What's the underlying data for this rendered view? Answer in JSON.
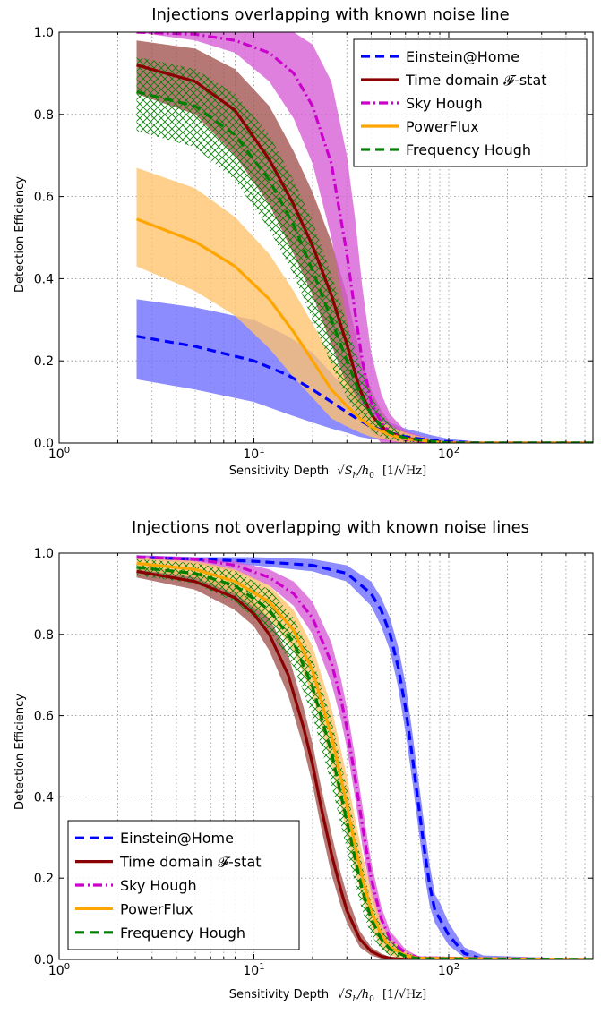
{
  "figure": {
    "background": "#ffffff"
  },
  "chart_data": [
    {
      "type": "line",
      "title": "Injections overlapping with known noise line",
      "xlabel_prefix": "Sensitivity Depth",
      "xlabel_units": "[1/√Hz]",
      "xlabel_math_S": "√S",
      "xlabel_math_S_sub": "h",
      "xlabel_math_h": "/h",
      "xlabel_math_h_sub": "0",
      "ylabel": "Detection Efficiency",
      "xscale": "log",
      "xlim": [
        1,
        550
      ],
      "ylim": [
        0,
        1
      ],
      "x_ticks": [
        {
          "base": "10",
          "exp": "0"
        },
        {
          "base": "10",
          "exp": "1"
        },
        {
          "base": "10",
          "exp": "2"
        }
      ],
      "y_ticks": [
        "0.0",
        "0.2",
        "0.4",
        "0.6",
        "0.8",
        "1.0"
      ],
      "grid": true,
      "legend_position": "top-right",
      "series": [
        {
          "name": "Einstein@Home",
          "color": "#0000ff",
          "style": "dashed",
          "x": [
            2.5,
            5,
            10,
            15,
            20,
            25,
            30,
            35,
            40,
            50,
            60,
            80,
            100,
            150,
            550
          ],
          "y": [
            0.26,
            0.235,
            0.2,
            0.165,
            0.13,
            0.1,
            0.075,
            0.055,
            0.04,
            0.025,
            0.015,
            0.007,
            0.003,
            0.0,
            0.0
          ],
          "lower": [
            0.155,
            0.13,
            0.1,
            0.07,
            0.05,
            0.035,
            0.025,
            0.015,
            0.01,
            0.005,
            0.0,
            0.0,
            0.0,
            0.0,
            0.0
          ],
          "upper": [
            0.35,
            0.33,
            0.3,
            0.26,
            0.22,
            0.17,
            0.13,
            0.1,
            0.075,
            0.05,
            0.035,
            0.02,
            0.01,
            0.002,
            0.0
          ]
        },
        {
          "name": "Time domain 𝓕-stat",
          "color": "#8b0000",
          "style": "solid",
          "x": [
            2.5,
            5,
            8,
            12,
            16,
            20,
            25,
            30,
            35,
            40,
            45,
            50,
            60,
            80,
            100,
            550
          ],
          "y": [
            0.92,
            0.88,
            0.81,
            0.69,
            0.58,
            0.48,
            0.36,
            0.24,
            0.13,
            0.07,
            0.04,
            0.025,
            0.012,
            0.004,
            0.0,
            0.0
          ],
          "lower": [
            0.85,
            0.8,
            0.7,
            0.58,
            0.46,
            0.36,
            0.24,
            0.14,
            0.07,
            0.035,
            0.02,
            0.01,
            0.004,
            0.0,
            0.0,
            0.0
          ],
          "upper": [
            0.98,
            0.96,
            0.91,
            0.82,
            0.71,
            0.61,
            0.49,
            0.36,
            0.22,
            0.13,
            0.08,
            0.05,
            0.025,
            0.01,
            0.0,
            0.0
          ]
        },
        {
          "name": "Sky Hough",
          "color": "#cc00cc",
          "style": "dashdot",
          "x": [
            2.5,
            5,
            8,
            12,
            16,
            20,
            25,
            30,
            33,
            36,
            40,
            45,
            50,
            60,
            80,
            100,
            550
          ],
          "y": [
            1.0,
            0.995,
            0.98,
            0.95,
            0.9,
            0.82,
            0.68,
            0.46,
            0.32,
            0.2,
            0.1,
            0.05,
            0.025,
            0.008,
            0.002,
            0.0,
            0.0
          ],
          "lower": [
            1.0,
            0.98,
            0.95,
            0.88,
            0.79,
            0.68,
            0.5,
            0.3,
            0.18,
            0.09,
            0.03,
            0.0,
            0.0,
            0.0,
            0.0,
            0.0,
            0.0
          ],
          "upper": [
            1.0,
            1.0,
            1.0,
            1.0,
            1.0,
            0.97,
            0.88,
            0.7,
            0.55,
            0.38,
            0.22,
            0.12,
            0.07,
            0.03,
            0.01,
            0.0,
            0.0
          ]
        },
        {
          "name": "PowerFlux",
          "color": "#ffa500",
          "style": "solid",
          "x": [
            2.5,
            5,
            8,
            12,
            16,
            20,
            25,
            30,
            35,
            40,
            50,
            60,
            80,
            100,
            550
          ],
          "y": [
            0.545,
            0.49,
            0.43,
            0.35,
            0.27,
            0.2,
            0.13,
            0.09,
            0.06,
            0.04,
            0.02,
            0.01,
            0.004,
            0.0,
            0.0
          ],
          "lower": [
            0.43,
            0.37,
            0.31,
            0.23,
            0.16,
            0.11,
            0.06,
            0.04,
            0.025,
            0.015,
            0.006,
            0.0,
            0.0,
            0.0,
            0.0
          ],
          "upper": [
            0.67,
            0.62,
            0.55,
            0.46,
            0.37,
            0.29,
            0.21,
            0.15,
            0.1,
            0.07,
            0.04,
            0.025,
            0.01,
            0.002,
            0.0
          ]
        },
        {
          "name": "Frequency Hough",
          "color": "#007f00",
          "style": "dashed",
          "x": [
            2.5,
            5,
            8,
            12,
            16,
            20,
            25,
            30,
            35,
            40,
            45,
            50,
            60,
            80,
            100,
            550
          ],
          "y": [
            0.855,
            0.82,
            0.75,
            0.64,
            0.53,
            0.42,
            0.3,
            0.2,
            0.12,
            0.07,
            0.04,
            0.025,
            0.012,
            0.004,
            0.0,
            0.0
          ],
          "lower": [
            0.76,
            0.72,
            0.64,
            0.52,
            0.41,
            0.3,
            0.19,
            0.11,
            0.06,
            0.03,
            0.015,
            0.008,
            0.003,
            0.0,
            0.0,
            0.0
          ],
          "upper": [
            0.94,
            0.91,
            0.85,
            0.75,
            0.64,
            0.54,
            0.41,
            0.29,
            0.19,
            0.12,
            0.07,
            0.045,
            0.02,
            0.008,
            0.0,
            0.0
          ]
        }
      ]
    },
    {
      "type": "line",
      "title": "Injections not overlapping with known noise lines",
      "xlabel_prefix": "Sensitivity Depth",
      "xlabel_units": "[1/√Hz]",
      "xlabel_math_S": "√S",
      "xlabel_math_S_sub": "h",
      "xlabel_math_h": "/h",
      "xlabel_math_h_sub": "0",
      "ylabel": "Detection Efficiency",
      "xscale": "log",
      "xlim": [
        1,
        550
      ],
      "ylim": [
        0,
        1
      ],
      "x_ticks": [
        {
          "base": "10",
          "exp": "0"
        },
        {
          "base": "10",
          "exp": "1"
        },
        {
          "base": "10",
          "exp": "2"
        }
      ],
      "y_ticks": [
        "0.0",
        "0.2",
        "0.4",
        "0.6",
        "0.8",
        "1.0"
      ],
      "grid": true,
      "legend_position": "bottom-left",
      "series": [
        {
          "name": "Einstein@Home",
          "color": "#0000ff",
          "style": "dashed",
          "x": [
            2.5,
            5,
            10,
            20,
            30,
            40,
            45,
            50,
            55,
            60,
            65,
            70,
            75,
            80,
            85,
            90,
            100,
            120,
            150,
            550
          ],
          "y": [
            0.99,
            0.985,
            0.98,
            0.97,
            0.95,
            0.9,
            0.86,
            0.8,
            0.72,
            0.62,
            0.5,
            0.38,
            0.27,
            0.18,
            0.12,
            0.1,
            0.06,
            0.015,
            0.0,
            0.0
          ],
          "lower": [
            0.985,
            0.98,
            0.97,
            0.955,
            0.93,
            0.87,
            0.82,
            0.76,
            0.67,
            0.56,
            0.44,
            0.32,
            0.21,
            0.13,
            0.09,
            0.07,
            0.035,
            0.005,
            0.0,
            0.0
          ],
          "upper": [
            0.995,
            0.99,
            0.99,
            0.985,
            0.97,
            0.93,
            0.89,
            0.84,
            0.77,
            0.68,
            0.56,
            0.44,
            0.33,
            0.23,
            0.16,
            0.14,
            0.09,
            0.03,
            0.01,
            0.0
          ]
        },
        {
          "name": "Time domain 𝓕-stat",
          "color": "#8b0000",
          "style": "solid",
          "x": [
            2.5,
            5,
            8,
            10,
            12,
            15,
            18,
            20,
            22,
            25,
            28,
            30,
            35,
            40,
            45,
            50,
            60,
            550
          ],
          "y": [
            0.955,
            0.93,
            0.89,
            0.85,
            0.8,
            0.7,
            0.57,
            0.48,
            0.38,
            0.26,
            0.17,
            0.12,
            0.05,
            0.02,
            0.008,
            0.003,
            0.0,
            0.0
          ],
          "lower": [
            0.94,
            0.91,
            0.86,
            0.82,
            0.76,
            0.65,
            0.52,
            0.43,
            0.33,
            0.21,
            0.13,
            0.09,
            0.03,
            0.01,
            0.002,
            0.0,
            0.0,
            0.0
          ],
          "upper": [
            0.97,
            0.95,
            0.92,
            0.88,
            0.84,
            0.75,
            0.62,
            0.53,
            0.43,
            0.31,
            0.21,
            0.16,
            0.07,
            0.03,
            0.015,
            0.006,
            0.001,
            0.0
          ]
        },
        {
          "name": "Sky Hough",
          "color": "#cc00cc",
          "style": "dashdot",
          "x": [
            2.5,
            5,
            8,
            12,
            16,
            20,
            25,
            28,
            30,
            33,
            36,
            40,
            45,
            50,
            60,
            70,
            550
          ],
          "y": [
            0.99,
            0.985,
            0.97,
            0.94,
            0.9,
            0.84,
            0.73,
            0.64,
            0.57,
            0.45,
            0.33,
            0.2,
            0.1,
            0.05,
            0.015,
            0.004,
            0.0
          ],
          "lower": [
            0.985,
            0.975,
            0.955,
            0.92,
            0.87,
            0.8,
            0.68,
            0.59,
            0.52,
            0.4,
            0.28,
            0.16,
            0.07,
            0.03,
            0.008,
            0.0,
            0.0
          ],
          "upper": [
            0.995,
            0.99,
            0.98,
            0.96,
            0.93,
            0.88,
            0.78,
            0.69,
            0.62,
            0.5,
            0.38,
            0.24,
            0.13,
            0.07,
            0.025,
            0.008,
            0.0
          ]
        },
        {
          "name": "PowerFlux",
          "color": "#ffa500",
          "style": "solid",
          "x": [
            2.5,
            5,
            8,
            12,
            16,
            20,
            25,
            30,
            33,
            36,
            40,
            45,
            50,
            60,
            70,
            550
          ],
          "y": [
            0.975,
            0.96,
            0.93,
            0.88,
            0.81,
            0.71,
            0.55,
            0.38,
            0.28,
            0.2,
            0.12,
            0.06,
            0.03,
            0.01,
            0.003,
            0.0
          ],
          "lower": [
            0.96,
            0.94,
            0.9,
            0.84,
            0.76,
            0.65,
            0.48,
            0.31,
            0.22,
            0.15,
            0.08,
            0.03,
            0.01,
            0.0,
            0.0,
            0.0
          ],
          "upper": [
            0.99,
            0.98,
            0.96,
            0.92,
            0.86,
            0.77,
            0.62,
            0.45,
            0.35,
            0.26,
            0.17,
            0.09,
            0.05,
            0.02,
            0.006,
            0.0
          ]
        },
        {
          "name": "Frequency Hough",
          "color": "#007f00",
          "style": "dashed",
          "x": [
            2.5,
            5,
            8,
            12,
            16,
            20,
            25,
            30,
            33,
            36,
            40,
            45,
            50,
            60,
            70,
            550
          ],
          "y": [
            0.965,
            0.95,
            0.92,
            0.86,
            0.78,
            0.67,
            0.51,
            0.34,
            0.25,
            0.17,
            0.1,
            0.05,
            0.025,
            0.008,
            0.002,
            0.0
          ],
          "lower": [
            0.945,
            0.925,
            0.88,
            0.81,
            0.72,
            0.6,
            0.43,
            0.27,
            0.19,
            0.12,
            0.06,
            0.025,
            0.01,
            0.0,
            0.0,
            0.0
          ],
          "upper": [
            0.985,
            0.975,
            0.955,
            0.91,
            0.84,
            0.74,
            0.59,
            0.42,
            0.32,
            0.23,
            0.14,
            0.08,
            0.045,
            0.018,
            0.005,
            0.0
          ]
        }
      ]
    }
  ]
}
